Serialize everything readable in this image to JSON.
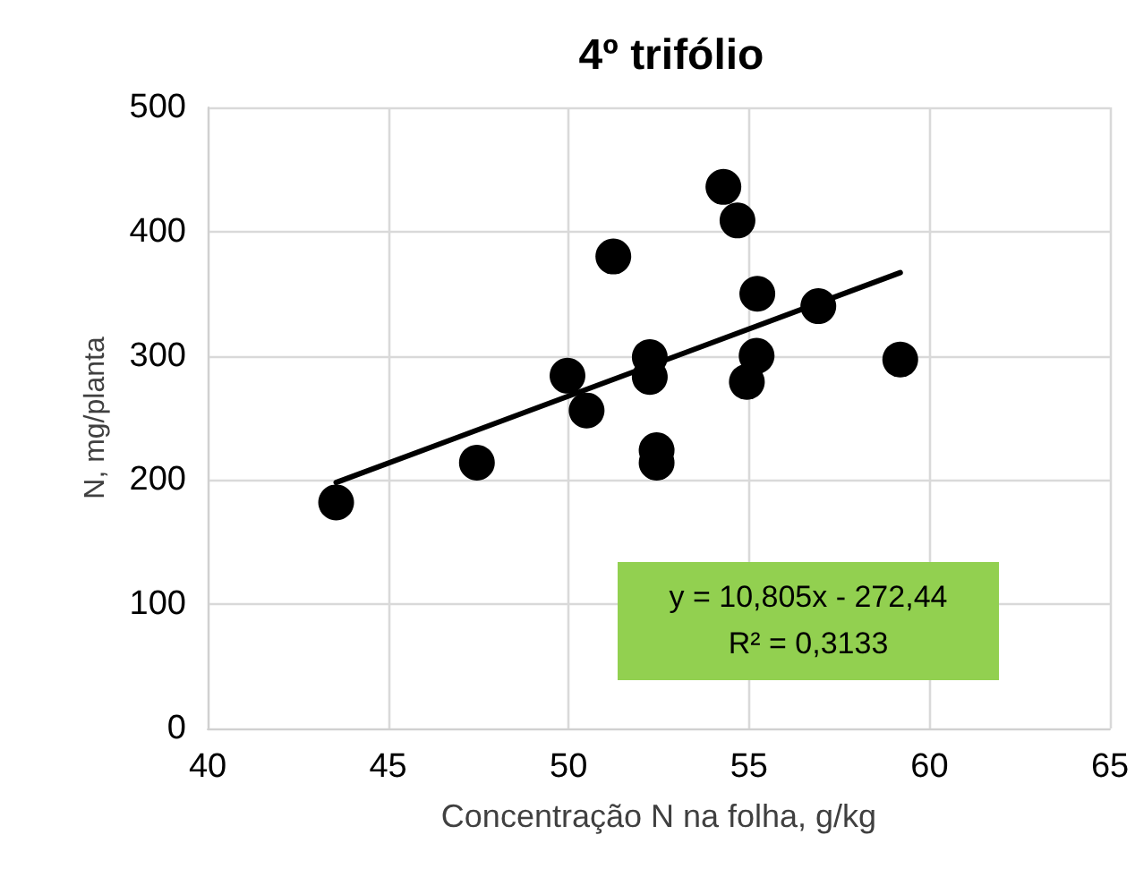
{
  "chart_data": {
    "type": "scatter",
    "title": "4º trifólio",
    "xlabel": "Concentração N na folha, g/kg",
    "ylabel": "N, mg/planta",
    "series": [
      {
        "type": "scatter",
        "color": "#000000",
        "marker": "circle",
        "x": [
          43.56,
          47.46,
          49.97,
          50.5,
          51.24,
          52.25,
          52.25,
          52.44,
          52.44,
          54.29,
          54.68,
          55.23,
          55.21,
          54.94,
          56.92,
          59.19
        ],
        "values": [
          182,
          214,
          284,
          256,
          380,
          299,
          283,
          224,
          214,
          436,
          409,
          350,
          300,
          279,
          340,
          297
        ]
      },
      {
        "type": "line",
        "color": "#000000",
        "marker": "none",
        "line_style": "solid",
        "x": [
          43.56,
          59.19
        ],
        "values": [
          198,
          367
        ]
      }
    ],
    "annotations": [
      "y = 10,805x - 272,44",
      "R² = 0,3133"
    ],
    "xlim": [
      40,
      65
    ],
    "xticks": [
      40,
      45,
      50,
      55,
      60,
      65
    ],
    "ylim": [
      0,
      500
    ],
    "yticks": [
      0,
      100,
      200,
      300,
      400,
      500
    ],
    "grid": true
  }
}
